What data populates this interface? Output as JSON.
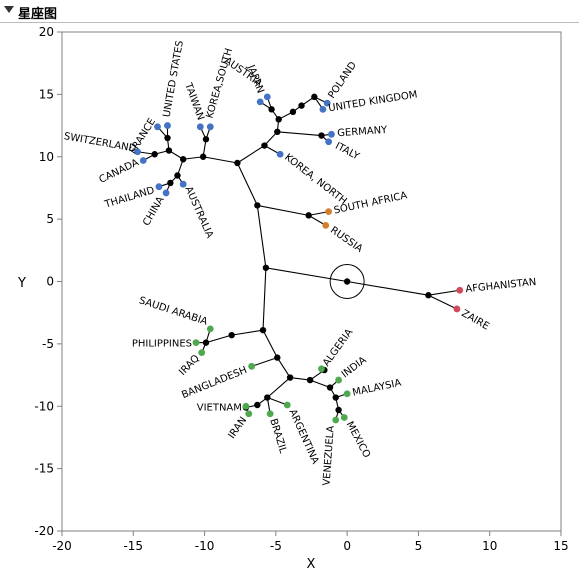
{
  "panel": {
    "title": "星座图"
  },
  "colors": {
    "blue": "#4472C4",
    "green": "#4EA84E",
    "orange": "#D2802C",
    "red": "#D04A5A",
    "internal": "#000000",
    "line": "#000000",
    "frame": "#808080"
  },
  "chart_data": {
    "type": "scatter",
    "xlabel": "X",
    "ylabel": "Y",
    "xlim": [
      -20,
      15
    ],
    "ylim": [
      -20,
      20
    ],
    "xticks": [
      -20,
      -15,
      -10,
      -5,
      0,
      5,
      10,
      15
    ],
    "yticks": [
      -20,
      -15,
      -10,
      -5,
      0,
      5,
      10,
      15,
      20
    ],
    "grid": false,
    "root": {
      "x": 0,
      "y": 0
    },
    "internal_nodes": [
      {
        "id": "n1",
        "x": -5.7,
        "y": 1.1,
        "parent": "root"
      },
      {
        "id": "n2",
        "x": -6.3,
        "y": 6.1,
        "parent": "n1"
      },
      {
        "id": "n3",
        "x": -7.7,
        "y": 9.5,
        "parent": "n2"
      },
      {
        "id": "n4",
        "x": -10.1,
        "y": 10.0,
        "parent": "n3"
      },
      {
        "id": "n5",
        "x": -11.5,
        "y": 9.8,
        "parent": "n4"
      },
      {
        "id": "n6",
        "x": -12.5,
        "y": 10.5,
        "parent": "n5"
      },
      {
        "id": "n7",
        "x": -12.6,
        "y": 11.5,
        "parent": "n6"
      },
      {
        "id": "n8",
        "x": -13.5,
        "y": 10.2,
        "parent": "n6"
      },
      {
        "id": "n9",
        "x": -11.9,
        "y": 8.5,
        "parent": "n5"
      },
      {
        "id": "n10",
        "x": -12.4,
        "y": 7.9,
        "parent": "n9"
      },
      {
        "id": "n11",
        "x": -9.9,
        "y": 11.4,
        "parent": "n4"
      },
      {
        "id": "n12",
        "x": -5.8,
        "y": 10.9,
        "parent": "n3"
      },
      {
        "id": "n13",
        "x": -4.9,
        "y": 12.0,
        "parent": "n12"
      },
      {
        "id": "n14",
        "x": -4.8,
        "y": 13.0,
        "parent": "n13"
      },
      {
        "id": "n15",
        "x": -5.3,
        "y": 13.8,
        "parent": "n14"
      },
      {
        "id": "n16",
        "x": -3.8,
        "y": 13.6,
        "parent": "n14"
      },
      {
        "id": "n17",
        "x": -3.2,
        "y": 14.1,
        "parent": "n16"
      },
      {
        "id": "n18",
        "x": -2.3,
        "y": 14.8,
        "parent": "n17"
      },
      {
        "id": "n19",
        "x": -1.8,
        "y": 11.7,
        "parent": "n13"
      },
      {
        "id": "n20",
        "x": -2.7,
        "y": 5.3,
        "parent": "n2"
      },
      {
        "id": "n21",
        "x": -5.9,
        "y": -3.9,
        "parent": "n1"
      },
      {
        "id": "n22",
        "x": -8.1,
        "y": -4.3,
        "parent": "n21"
      },
      {
        "id": "n23",
        "x": -9.9,
        "y": -4.9,
        "parent": "n22"
      },
      {
        "id": "n24",
        "x": -4.9,
        "y": -6.1,
        "parent": "n21"
      },
      {
        "id": "n25",
        "x": -4.0,
        "y": -7.7,
        "parent": "n24"
      },
      {
        "id": "n26",
        "x": -5.6,
        "y": -9.3,
        "parent": "n25"
      },
      {
        "id": "n27",
        "x": -6.3,
        "y": -9.9,
        "parent": "n26"
      },
      {
        "id": "n28",
        "x": -7.1,
        "y": -10.1,
        "parent": "n27"
      },
      {
        "id": "n29",
        "x": -2.6,
        "y": -7.9,
        "parent": "n25"
      },
      {
        "id": "n30",
        "x": -1.6,
        "y": -7.1,
        "parent": "n29"
      },
      {
        "id": "n31",
        "x": -1.2,
        "y": -8.5,
        "parent": "n29"
      },
      {
        "id": "n32",
        "x": -0.8,
        "y": -9.3,
        "parent": "n31"
      },
      {
        "id": "n33",
        "x": -0.6,
        "y": -10.3,
        "parent": "n32"
      },
      {
        "id": "n34",
        "x": 5.7,
        "y": -1.1,
        "parent": "root"
      }
    ],
    "leaves": [
      {
        "name": "FRANCE",
        "x": -13.3,
        "y": 12.4,
        "color": "blue",
        "parent": "n7",
        "angle": -58,
        "anchor": "end",
        "dx": -2,
        "dy": -6
      },
      {
        "name": "UNITED STATES",
        "x": -12.6,
        "y": 12.5,
        "color": "blue",
        "parent": "n7",
        "angle": -80,
        "anchor": "start",
        "dx": 2,
        "dy": -8
      },
      {
        "name": "SWITZERLAND",
        "x": -14.7,
        "y": 10.4,
        "color": "blue",
        "parent": "n8",
        "angle": 10,
        "anchor": "end",
        "dx": -2,
        "dy": 0
      },
      {
        "name": "CANADA",
        "x": -14.3,
        "y": 9.7,
        "color": "blue",
        "parent": "n8",
        "angle": -26,
        "anchor": "end",
        "dx": -4,
        "dy": 4
      },
      {
        "name": "THAILAND",
        "x": -13.2,
        "y": 7.6,
        "color": "blue",
        "parent": "n10",
        "angle": -17,
        "anchor": "end",
        "dx": -4,
        "dy": 6
      },
      {
        "name": "CHINA",
        "x": -12.7,
        "y": 7.1,
        "color": "blue",
        "parent": "n10",
        "angle": -60,
        "anchor": "end",
        "dx": -2,
        "dy": 6
      },
      {
        "name": "AUSTRALIA",
        "x": -11.5,
        "y": 7.8,
        "color": "blue",
        "parent": "n9",
        "angle": 66,
        "anchor": "start",
        "dx": 2,
        "dy": 4
      },
      {
        "name": "TAIWAN",
        "x": -10.3,
        "y": 12.4,
        "color": "blue",
        "parent": "n11",
        "angle": 70,
        "anchor": "end",
        "dx": -2,
        "dy": -6
      },
      {
        "name": "KOREA,SOUTH",
        "x": -9.6,
        "y": 12.4,
        "color": "blue",
        "parent": "n11",
        "angle": -74,
        "anchor": "start",
        "dx": 2,
        "dy": -8
      },
      {
        "name": "JAPAN",
        "x": -6.1,
        "y": 14.4,
        "color": "blue",
        "parent": "n15",
        "angle": 69,
        "anchor": "end",
        "dx": -2,
        "dy": -8
      },
      {
        "name": "AUSTRIA",
        "x": -5.6,
        "y": 14.8,
        "color": "blue",
        "parent": "n15",
        "angle": 35,
        "anchor": "end",
        "dx": -8,
        "dy": -10
      },
      {
        "name": "POLAND",
        "x": -1.4,
        "y": 14.3,
        "color": "blue",
        "parent": "n18",
        "angle": -56,
        "anchor": "start",
        "dx": 6,
        "dy": -4
      },
      {
        "name": "UNITED KINGDOM",
        "x": -1.7,
        "y": 13.8,
        "color": "blue",
        "parent": "n18",
        "angle": -9,
        "anchor": "start",
        "dx": 6,
        "dy": 2
      },
      {
        "name": "GERMANY",
        "x": -1.1,
        "y": 11.8,
        "color": "blue",
        "parent": "n19",
        "angle": -4,
        "anchor": "start",
        "dx": 6,
        "dy": 2
      },
      {
        "name": "ITALY",
        "x": -1.3,
        "y": 11.2,
        "color": "blue",
        "parent": "n19",
        "angle": 28,
        "anchor": "start",
        "dx": 6,
        "dy": 6
      },
      {
        "name": "KOREA, NORTH",
        "x": -4.7,
        "y": 10.2,
        "color": "blue",
        "parent": "n12",
        "angle": 38,
        "anchor": "start",
        "dx": 4,
        "dy": 4
      },
      {
        "name": "SOUTH AFRICA",
        "x": -1.3,
        "y": 5.6,
        "color": "orange",
        "parent": "n20",
        "angle": -12,
        "anchor": "start",
        "dx": 6,
        "dy": 2
      },
      {
        "name": "RUSSIA",
        "x": -1.5,
        "y": 4.5,
        "color": "orange",
        "parent": "n20",
        "angle": 35,
        "anchor": "start",
        "dx": 4,
        "dy": 6
      },
      {
        "name": "SAUDI ARABIA",
        "x": -9.6,
        "y": -3.8,
        "color": "green",
        "parent": "n23",
        "angle": 18,
        "anchor": "end",
        "dx": -4,
        "dy": -4
      },
      {
        "name": "PHILIPPINES",
        "x": -10.6,
        "y": -4.9,
        "color": "green",
        "parent": "n23",
        "angle": 0,
        "anchor": "end",
        "dx": -4,
        "dy": 4
      },
      {
        "name": "IRAQ",
        "x": -10.2,
        "y": -5.7,
        "color": "green",
        "parent": "n23",
        "angle": -46,
        "anchor": "end",
        "dx": -2,
        "dy": 6
      },
      {
        "name": "BANGLADESH",
        "x": -6.7,
        "y": -6.8,
        "color": "green",
        "parent": "n24",
        "angle": -22,
        "anchor": "end",
        "dx": -4,
        "dy": 6
      },
      {
        "name": "VIETNAM",
        "x": -7.1,
        "y": -10.0,
        "color": "green",
        "parent": "n28",
        "angle": 0,
        "anchor": "end",
        "dx": -4,
        "dy": 4
      },
      {
        "name": "IRAN",
        "x": -6.9,
        "y": -10.6,
        "color": "green",
        "parent": "n28",
        "angle": -55,
        "anchor": "end",
        "dx": -2,
        "dy": 6
      },
      {
        "name": "BRAZIL",
        "x": -5.4,
        "y": -10.6,
        "color": "green",
        "parent": "n26",
        "angle": 73,
        "anchor": "start",
        "dx": 0,
        "dy": 6
      },
      {
        "name": "ARGENTINA",
        "x": -4.2,
        "y": -9.9,
        "color": "green",
        "parent": "n26",
        "angle": 66,
        "anchor": "start",
        "dx": 2,
        "dy": 6
      },
      {
        "name": "ALGERIA",
        "x": -1.8,
        "y": -7.0,
        "color": "green",
        "parent": "n30",
        "angle": -54,
        "anchor": "start",
        "dx": 6,
        "dy": -2
      },
      {
        "name": "INDIA",
        "x": -0.6,
        "y": -7.9,
        "color": "green",
        "parent": "n31",
        "angle": -37,
        "anchor": "start",
        "dx": 6,
        "dy": -2
      },
      {
        "name": "MALAYSIA",
        "x": 0.0,
        "y": -9.0,
        "color": "green",
        "parent": "n32",
        "angle": -12,
        "anchor": "start",
        "dx": 6,
        "dy": 2
      },
      {
        "name": "VENEZUELA",
        "x": -0.8,
        "y": -11.1,
        "color": "green",
        "parent": "n33",
        "angle": -86,
        "anchor": "end",
        "dx": -2,
        "dy": 6
      },
      {
        "name": "MEXICO",
        "x": -0.2,
        "y": -10.9,
        "color": "green",
        "parent": "n33",
        "angle": 62,
        "anchor": "start",
        "dx": 2,
        "dy": 6
      },
      {
        "name": "AFGHANISTAN",
        "x": 7.9,
        "y": -0.7,
        "color": "red",
        "parent": "n34",
        "angle": -6,
        "anchor": "start",
        "dx": 6,
        "dy": 2
      },
      {
        "name": "ZAIRE",
        "x": 7.7,
        "y": -2.2,
        "color": "red",
        "parent": "n34",
        "angle": 30,
        "anchor": "start",
        "dx": 4,
        "dy": 6
      }
    ]
  }
}
